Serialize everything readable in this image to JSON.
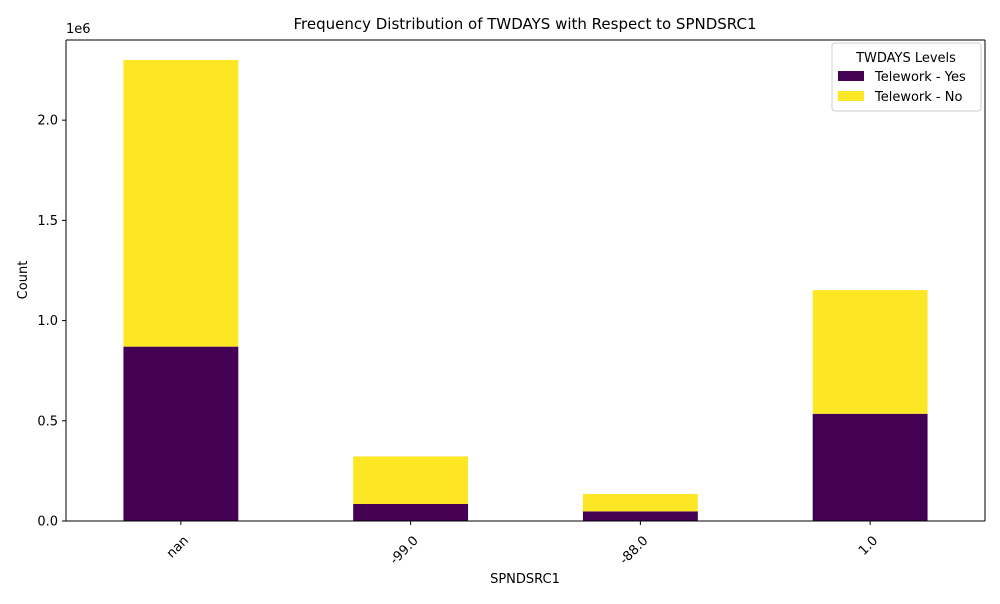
{
  "chart_data": {
    "type": "bar",
    "stacked": true,
    "title": "Frequency Distribution of TWDAYS with Respect to SPNDSRC1",
    "xlabel": "SPNDSRC1",
    "ylabel": "Count",
    "y_offset_label": "1e6",
    "categories": [
      "nan",
      "-99.0",
      "-88.0",
      "1.0"
    ],
    "series": [
      {
        "name": "Telework - Yes",
        "color": "#440154",
        "values": [
          870000,
          85000,
          48000,
          535000
        ]
      },
      {
        "name": "Telework - No",
        "color": "#fde725",
        "values": [
          1430000,
          237000,
          87000,
          617000
        ]
      }
    ],
    "ylim": [
      0,
      2400000
    ],
    "yticks": [
      0,
      500000,
      1000000,
      1500000,
      2000000
    ],
    "ytick_labels": [
      "0.0",
      "0.5",
      "1.0",
      "1.5",
      "2.0"
    ],
    "xtick_rotation": 45,
    "grid": false,
    "legend": {
      "title": "TWDAYS Levels",
      "placement": "top-right"
    }
  }
}
